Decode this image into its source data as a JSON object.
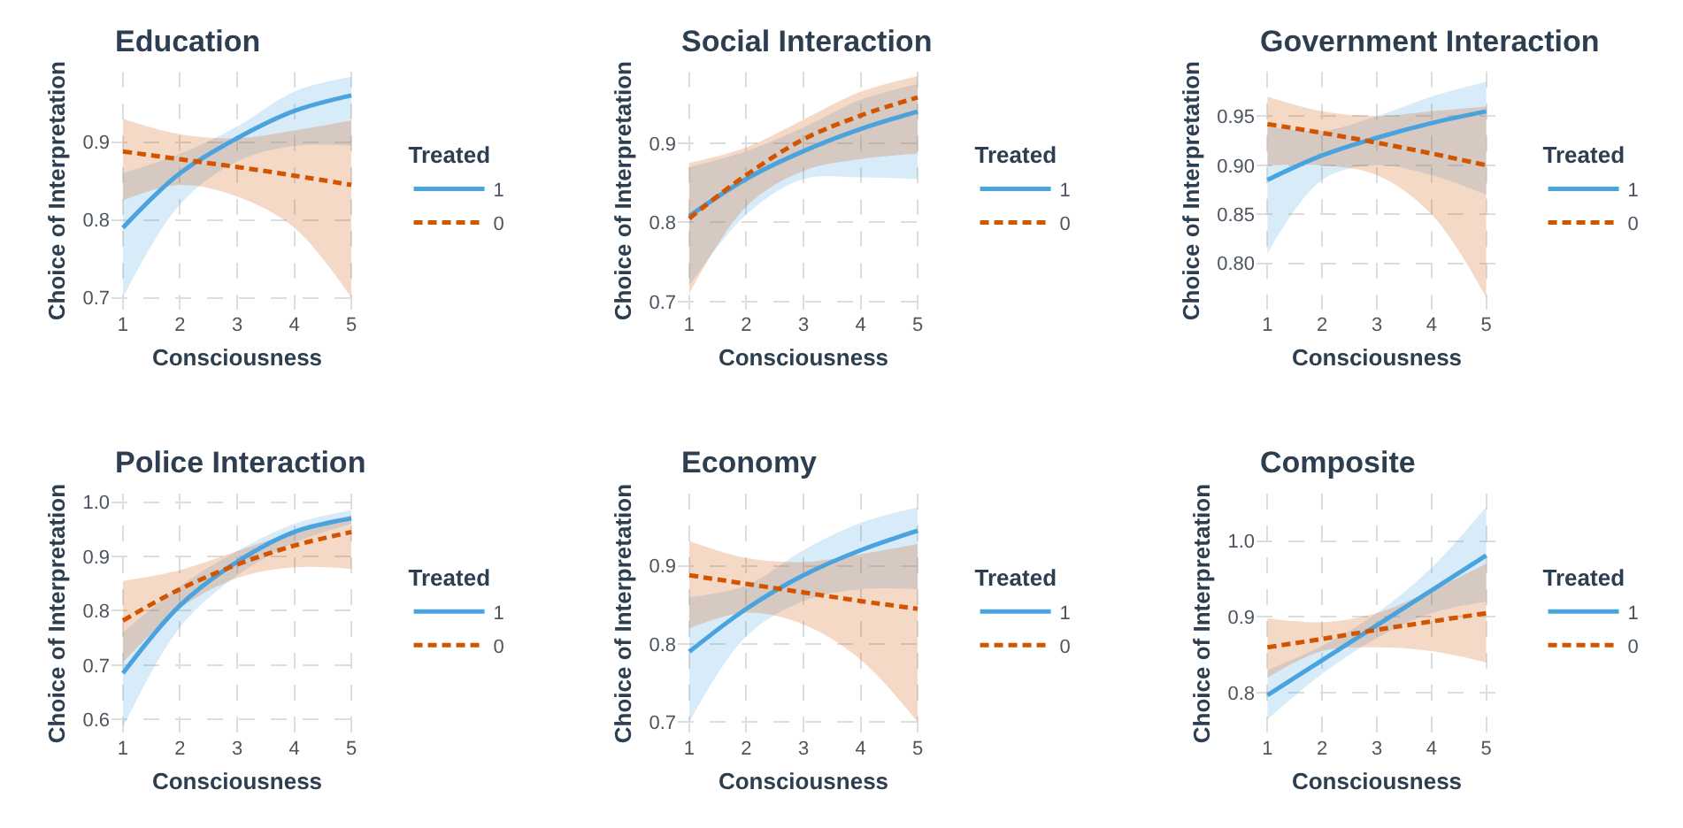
{
  "chart_data": [
    {
      "type": "line",
      "title": "Education",
      "xlabel": "Consciousness",
      "ylabel": "Choice of Interpretation",
      "legend_title": "Treated",
      "legend": "right",
      "grid": true,
      "x": [
        1,
        2,
        3,
        4,
        5
      ],
      "xlim": [
        0.8,
        5.2
      ],
      "xticks": [
        1,
        2,
        3,
        4,
        5
      ],
      "ylim": [
        0.685,
        0.99
      ],
      "yticks": [
        {
          "value": 0.7,
          "label": "0.7"
        },
        {
          "value": 0.8,
          "label": "0.8"
        },
        {
          "value": 0.9,
          "label": "0.9"
        }
      ],
      "series": [
        {
          "name": "1",
          "color": "#4aa3df",
          "line_style": "solid",
          "values": [
            0.79,
            0.86,
            0.905,
            0.94,
            0.96
          ],
          "lower": [
            0.7,
            0.82,
            0.875,
            0.895,
            0.895
          ],
          "upper": [
            0.86,
            0.885,
            0.92,
            0.965,
            0.984
          ]
        },
        {
          "name": "0",
          "color": "#d35400",
          "line_style": "dashed",
          "values": [
            0.888,
            0.878,
            0.868,
            0.857,
            0.845
          ],
          "lower": [
            0.825,
            0.845,
            0.83,
            0.79,
            0.7
          ],
          "upper": [
            0.93,
            0.91,
            0.905,
            0.915,
            0.928
          ]
        }
      ]
    },
    {
      "type": "line",
      "title": "Social Interaction",
      "xlabel": "Consciousness",
      "ylabel": "Choice of Interpretation",
      "legend_title": "Treated",
      "legend": "right",
      "grid": true,
      "x": [
        1,
        2,
        3,
        4,
        5
      ],
      "xlim": [
        0.8,
        5.2
      ],
      "xticks": [
        1,
        2,
        3,
        4,
        5
      ],
      "ylim": [
        0.69,
        0.99
      ],
      "yticks": [
        {
          "value": 0.7,
          "label": "0.7"
        },
        {
          "value": 0.8,
          "label": "0.8"
        },
        {
          "value": 0.9,
          "label": "0.9"
        }
      ],
      "series": [
        {
          "name": "1",
          "color": "#4aa3df",
          "line_style": "solid",
          "values": [
            0.808,
            0.855,
            0.89,
            0.918,
            0.94
          ],
          "lower": [
            0.72,
            0.81,
            0.855,
            0.857,
            0.855
          ],
          "upper": [
            0.87,
            0.89,
            0.92,
            0.955,
            0.975
          ]
        },
        {
          "name": "0",
          "color": "#d35400",
          "line_style": "dashed",
          "values": [
            0.805,
            0.86,
            0.905,
            0.935,
            0.958
          ],
          "lower": [
            0.71,
            0.82,
            0.865,
            0.88,
            0.887
          ],
          "upper": [
            0.875,
            0.895,
            0.93,
            0.965,
            0.985
          ]
        }
      ]
    },
    {
      "type": "line",
      "title": "Government Interaction",
      "xlabel": "Consciousness",
      "ylabel": "Choice of Interpretation",
      "legend_title": "Treated",
      "legend": "right",
      "grid": true,
      "x": [
        1,
        2,
        3,
        4,
        5
      ],
      "xlim": [
        0.8,
        5.2
      ],
      "xticks": [
        1,
        2,
        3,
        4,
        5
      ],
      "ylim": [
        0.753,
        0.995
      ],
      "yticks": [
        {
          "value": 0.8,
          "label": "0.80"
        },
        {
          "value": 0.85,
          "label": "0.85"
        },
        {
          "value": 0.9,
          "label": "0.90"
        },
        {
          "value": 0.95,
          "label": "0.95"
        }
      ],
      "series": [
        {
          "name": "1",
          "color": "#4aa3df",
          "line_style": "solid",
          "values": [
            0.885,
            0.91,
            0.928,
            0.943,
            0.955
          ],
          "lower": [
            0.81,
            0.885,
            0.9,
            0.89,
            0.87
          ],
          "upper": [
            0.94,
            0.935,
            0.95,
            0.97,
            0.985
          ]
        },
        {
          "name": "0",
          "color": "#d35400",
          "line_style": "dashed",
          "values": [
            0.942,
            0.933,
            0.923,
            0.912,
            0.9
          ],
          "lower": [
            0.9,
            0.9,
            0.89,
            0.85,
            0.765
          ],
          "upper": [
            0.97,
            0.955,
            0.95,
            0.955,
            0.96
          ]
        }
      ]
    },
    {
      "type": "line",
      "title": "Police Interaction",
      "xlabel": "Consciousness",
      "ylabel": "Choice of Interpretation",
      "legend_title": "Treated",
      "legend": "right",
      "grid": true,
      "x": [
        1,
        2,
        3,
        4,
        5
      ],
      "xlim": [
        0.8,
        5.2
      ],
      "xticks": [
        1,
        2,
        3,
        4,
        5
      ],
      "ylim": [
        0.575,
        1.015
      ],
      "yticks": [
        {
          "value": 0.6,
          "label": "0.6"
        },
        {
          "value": 0.7,
          "label": "0.7"
        },
        {
          "value": 0.8,
          "label": "0.8"
        },
        {
          "value": 0.9,
          "label": "0.9"
        },
        {
          "value": 1.0,
          "label": "1.0"
        }
      ],
      "series": [
        {
          "name": "1",
          "color": "#4aa3df",
          "line_style": "solid",
          "values": [
            0.685,
            0.81,
            0.89,
            0.945,
            0.97
          ],
          "lower": [
            0.585,
            0.77,
            0.865,
            0.925,
            0.96
          ],
          "upper": [
            0.76,
            0.845,
            0.91,
            0.96,
            0.985
          ]
        },
        {
          "name": "0",
          "color": "#d35400",
          "line_style": "dashed",
          "values": [
            0.782,
            0.84,
            0.885,
            0.92,
            0.945
          ],
          "lower": [
            0.705,
            0.805,
            0.86,
            0.88,
            0.877
          ],
          "upper": [
            0.855,
            0.875,
            0.91,
            0.945,
            0.975
          ]
        }
      ]
    },
    {
      "type": "line",
      "title": "Economy",
      "xlabel": "Consciousness",
      "ylabel": "Choice of Interpretation",
      "legend_title": "Treated",
      "legend": "right",
      "grid": true,
      "x": [
        1,
        2,
        3,
        4,
        5
      ],
      "xlim": [
        0.8,
        5.2
      ],
      "xticks": [
        1,
        2,
        3,
        4,
        5
      ],
      "ylim": [
        0.686,
        0.992
      ],
      "yticks": [
        {
          "value": 0.7,
          "label": "0.7"
        },
        {
          "value": 0.8,
          "label": "0.8"
        },
        {
          "value": 0.9,
          "label": "0.9"
        }
      ],
      "series": [
        {
          "name": "1",
          "color": "#4aa3df",
          "line_style": "solid",
          "values": [
            0.79,
            0.845,
            0.888,
            0.92,
            0.945
          ],
          "lower": [
            0.7,
            0.81,
            0.855,
            0.87,
            0.87
          ],
          "upper": [
            0.86,
            0.875,
            0.92,
            0.955,
            0.975
          ]
        },
        {
          "name": "0",
          "color": "#d35400",
          "line_style": "dashed",
          "values": [
            0.888,
            0.877,
            0.866,
            0.855,
            0.845
          ],
          "lower": [
            0.82,
            0.84,
            0.825,
            0.78,
            0.7
          ],
          "upper": [
            0.932,
            0.91,
            0.905,
            0.915,
            0.928
          ]
        }
      ]
    },
    {
      "type": "line",
      "title": "Composite",
      "xlabel": "Consciousness",
      "ylabel": "Choice of Interpretation",
      "legend_title": "Treated",
      "legend": "right",
      "grid": true,
      "x": [
        1,
        2,
        3,
        4,
        5
      ],
      "xlim": [
        0.8,
        5.2
      ],
      "xticks": [
        1,
        2,
        3,
        4,
        5
      ],
      "ylim": [
        0.747,
        1.062
      ],
      "yticks": [
        {
          "value": 0.8,
          "label": "0.8"
        },
        {
          "value": 0.9,
          "label": "0.9"
        },
        {
          "value": 1.0,
          "label": "1.0"
        }
      ],
      "series": [
        {
          "name": "1",
          "color": "#4aa3df",
          "line_style": "solid",
          "values": [
            0.797,
            0.843,
            0.889,
            0.935,
            0.981
          ],
          "lower": [
            0.765,
            0.825,
            0.872,
            0.905,
            0.92
          ],
          "upper": [
            0.83,
            0.862,
            0.905,
            0.965,
            1.045
          ]
        },
        {
          "name": "0",
          "color": "#d35400",
          "line_style": "dashed",
          "values": [
            0.86,
            0.871,
            0.883,
            0.894,
            0.905
          ],
          "lower": [
            0.82,
            0.855,
            0.86,
            0.855,
            0.84
          ],
          "upper": [
            0.898,
            0.893,
            0.905,
            0.935,
            0.97
          ]
        }
      ]
    }
  ]
}
